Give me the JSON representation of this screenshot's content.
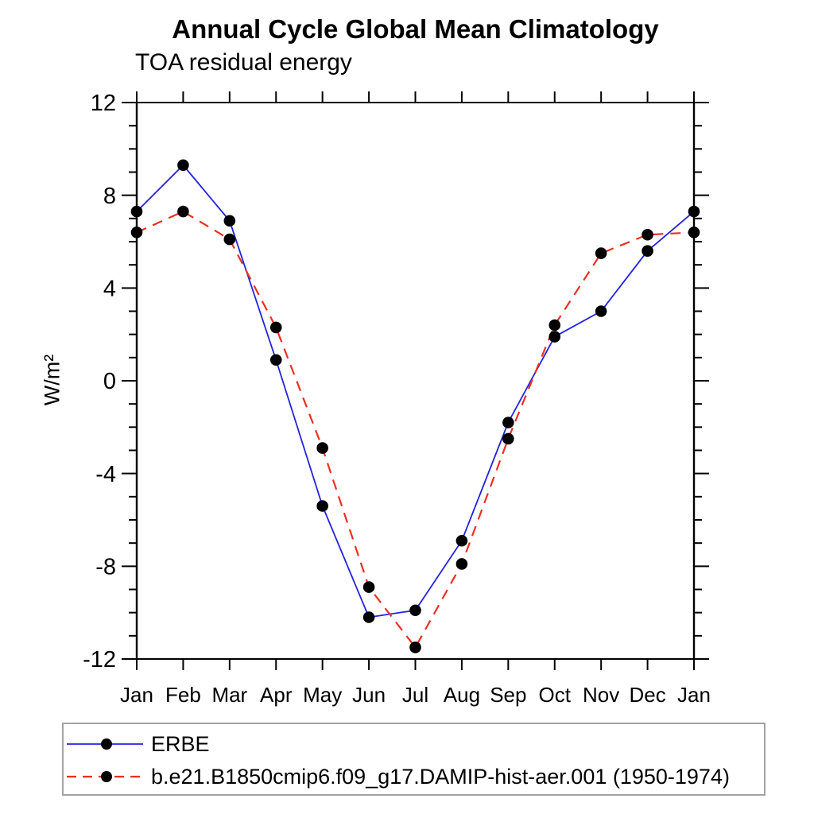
{
  "chart_data": {
    "type": "line",
    "title": "Annual Cycle Global Mean Climatology",
    "subtitle": "TOA residual energy",
    "ylabel": "W/m²",
    "xlabel": "",
    "categories": [
      "Jan",
      "Feb",
      "Mar",
      "Apr",
      "May",
      "Jun",
      "Jul",
      "Aug",
      "Sep",
      "Oct",
      "Nov",
      "Dec",
      "Jan"
    ],
    "ylim": [
      -12,
      12
    ],
    "yticks": [
      -12,
      -8,
      -4,
      0,
      4,
      8,
      12
    ],
    "minor_ytick_step": 1,
    "grid": false,
    "legend_position": "bottom-left-below-plot",
    "marker": "filled-circle",
    "marker_color": "#000000",
    "axis_color": "#000000",
    "series": [
      {
        "name": "ERBE",
        "color": "#2222dd",
        "line_style": "solid",
        "values": [
          7.3,
          9.3,
          6.9,
          0.9,
          -5.4,
          -10.2,
          -9.9,
          -6.9,
          -1.8,
          1.9,
          3.0,
          5.6,
          7.3
        ]
      },
      {
        "name": "b.e21.B1850cmip6.f09_g17.DAMIP-hist-aer.001 (1950-1974)",
        "color": "#ee2e20",
        "line_style": "dashed",
        "values": [
          6.4,
          7.3,
          6.1,
          2.3,
          -2.9,
          -8.9,
          -11.5,
          -7.9,
          -2.5,
          2.4,
          5.5,
          6.3,
          6.4
        ]
      }
    ]
  }
}
